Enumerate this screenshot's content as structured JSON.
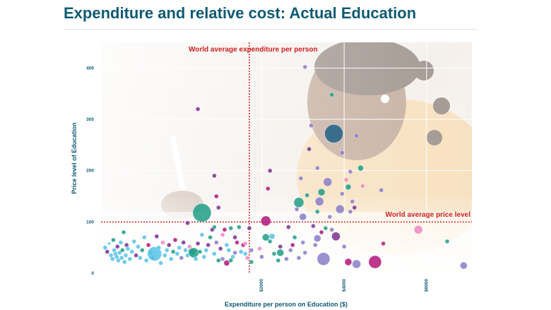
{
  "header": {
    "title": "Expenditure and relative cost: Actual Education"
  },
  "colors": {
    "title": "#0e5a73",
    "reference_line": "#d02020",
    "cyan": "#56c2e6",
    "teal": "#1f9e86",
    "purple": "#7a2f8f",
    "magenta": "#b0157a",
    "pink": "#ee88c4",
    "lavender": "#8a7cc8",
    "navy": "#1e5f86"
  },
  "background": {
    "description_icon": "child-writing-photo-icon"
  },
  "chart_data": {
    "type": "scatter",
    "title": "Expenditure and relative cost: Actual Education",
    "xlabel": "Expenditure per person on Education ($)",
    "ylabel": "Price level of Education",
    "xlim": [
      -1900,
      7100
    ],
    "ylim": [
      0,
      450
    ],
    "x_ticks": [
      2000,
      4000,
      6000
    ],
    "x_tick_labels": [
      "$2000",
      "$4000",
      "$6000"
    ],
    "y_ticks": [
      0,
      100,
      200,
      300,
      400
    ],
    "y_tick_labels": [
      "0",
      "100",
      "200",
      "300",
      "400"
    ],
    "grid": true,
    "reference_lines": [
      {
        "axis": "x",
        "value": 1700,
        "label": "World average expenditure per person"
      },
      {
        "axis": "y",
        "value": 100,
        "label": "World average price level"
      }
    ],
    "points": [
      {
        "x": -1800,
        "y": 50,
        "s": 3,
        "c": "cyan"
      },
      {
        "x": -1750,
        "y": 42,
        "s": 3,
        "c": "purple"
      },
      {
        "x": -1700,
        "y": 58,
        "s": 2,
        "c": "cyan"
      },
      {
        "x": -1660,
        "y": 35,
        "s": 3,
        "c": "cyan"
      },
      {
        "x": -1620,
        "y": 28,
        "s": 3,
        "c": "cyan"
      },
      {
        "x": -1600,
        "y": 65,
        "s": 3,
        "c": "teal"
      },
      {
        "x": -1580,
        "y": 45,
        "s": 3,
        "c": "cyan"
      },
      {
        "x": -1550,
        "y": 38,
        "s": 3,
        "c": "cyan"
      },
      {
        "x": -1520,
        "y": 32,
        "s": 3,
        "c": "cyan"
      },
      {
        "x": -1500,
        "y": 52,
        "s": 3,
        "c": "purple"
      },
      {
        "x": -1480,
        "y": 25,
        "s": 3,
        "c": "cyan"
      },
      {
        "x": -1450,
        "y": 40,
        "s": 3,
        "c": "cyan"
      },
      {
        "x": -1420,
        "y": 60,
        "s": 3,
        "c": "cyan"
      },
      {
        "x": -1400,
        "y": 30,
        "s": 3,
        "c": "cyan"
      },
      {
        "x": -1380,
        "y": 45,
        "s": 3,
        "c": "teal"
      },
      {
        "x": -1350,
        "y": 80,
        "s": 3,
        "c": "teal"
      },
      {
        "x": -1330,
        "y": 22,
        "s": 3,
        "c": "cyan"
      },
      {
        "x": -1300,
        "y": 35,
        "s": 3,
        "c": "cyan"
      },
      {
        "x": -1280,
        "y": 55,
        "s": 3,
        "c": "purple"
      },
      {
        "x": -1250,
        "y": 48,
        "s": 3,
        "c": "cyan"
      },
      {
        "x": -1200,
        "y": 28,
        "s": 3,
        "c": "cyan"
      },
      {
        "x": -1150,
        "y": 42,
        "s": 3,
        "c": "cyan"
      },
      {
        "x": -1100,
        "y": 62,
        "s": 3,
        "c": "cyan"
      },
      {
        "x": -1050,
        "y": 35,
        "s": 3,
        "c": "purple"
      },
      {
        "x": -1000,
        "y": 52,
        "s": 3,
        "c": "cyan"
      },
      {
        "x": -950,
        "y": 30,
        "s": 3,
        "c": "cyan"
      },
      {
        "x": -900,
        "y": 45,
        "s": 3,
        "c": "teal"
      },
      {
        "x": -850,
        "y": 70,
        "s": 3,
        "c": "cyan"
      },
      {
        "x": -800,
        "y": 25,
        "s": 3,
        "c": "cyan"
      },
      {
        "x": -750,
        "y": 55,
        "s": 3,
        "c": "magenta"
      },
      {
        "x": -700,
        "y": 40,
        "s": 3,
        "c": "cyan"
      },
      {
        "x": -650,
        "y": 30,
        "s": 3,
        "c": "cyan"
      },
      {
        "x": -600,
        "y": 38,
        "s": 10,
        "c": "cyan"
      },
      {
        "x": -550,
        "y": 72,
        "s": 3,
        "c": "purple"
      },
      {
        "x": -500,
        "y": 50,
        "s": 3,
        "c": "cyan"
      },
      {
        "x": -450,
        "y": 20,
        "s": 3,
        "c": "cyan"
      },
      {
        "x": -400,
        "y": 60,
        "s": 3,
        "c": "pink"
      },
      {
        "x": -350,
        "y": 35,
        "s": 3,
        "c": "cyan"
      },
      {
        "x": -300,
        "y": 45,
        "s": 3,
        "c": "cyan"
      },
      {
        "x": -250,
        "y": 55,
        "s": 3,
        "c": "purple"
      },
      {
        "x": -200,
        "y": 28,
        "s": 3,
        "c": "cyan"
      },
      {
        "x": -150,
        "y": 42,
        "s": 3,
        "c": "teal"
      },
      {
        "x": -100,
        "y": 65,
        "s": 3,
        "c": "magenta"
      },
      {
        "x": -50,
        "y": 38,
        "s": 3,
        "c": "cyan"
      },
      {
        "x": 0,
        "y": 50,
        "s": 3,
        "c": "cyan"
      },
      {
        "x": 50,
        "y": 30,
        "s": 3,
        "c": "lavender"
      },
      {
        "x": 100,
        "y": 60,
        "s": 3,
        "c": "purple"
      },
      {
        "x": 150,
        "y": 45,
        "s": 3,
        "c": "cyan"
      },
      {
        "x": 200,
        "y": 35,
        "s": 3,
        "c": "cyan"
      },
      {
        "x": 250,
        "y": 52,
        "s": 3,
        "c": "pink"
      },
      {
        "x": 300,
        "y": 42,
        "s": 5,
        "c": "teal"
      },
      {
        "x": 350,
        "y": 40,
        "s": 7,
        "c": "teal"
      },
      {
        "x": 400,
        "y": 28,
        "s": 3,
        "c": "cyan"
      },
      {
        "x": 450,
        "y": 58,
        "s": 3,
        "c": "purple"
      },
      {
        "x": 500,
        "y": 42,
        "s": 3,
        "c": "teal"
      },
      {
        "x": 550,
        "y": 75,
        "s": 3,
        "c": "cyan"
      },
      {
        "x": 600,
        "y": 32,
        "s": 3,
        "c": "cyan"
      },
      {
        "x": 650,
        "y": 45,
        "s": 3,
        "c": "cyan"
      },
      {
        "x": 700,
        "y": 55,
        "s": 3,
        "c": "purple"
      },
      {
        "x": 750,
        "y": 70,
        "s": 3,
        "c": "teal"
      },
      {
        "x": 800,
        "y": 85,
        "s": 3,
        "c": "purple"
      },
      {
        "x": 850,
        "y": 38,
        "s": 3,
        "c": "cyan"
      },
      {
        "x": 900,
        "y": 60,
        "s": 3,
        "c": "lavender"
      },
      {
        "x": 950,
        "y": 25,
        "s": 3,
        "c": "teal"
      },
      {
        "x": 1000,
        "y": 48,
        "s": 3,
        "c": "purple"
      },
      {
        "x": 1050,
        "y": 75,
        "s": 3,
        "c": "pink"
      },
      {
        "x": 1100,
        "y": 85,
        "s": 3,
        "c": "magenta"
      },
      {
        "x": 1150,
        "y": 55,
        "s": 3,
        "c": "cyan"
      },
      {
        "x": 1200,
        "y": 45,
        "s": 3,
        "c": "cyan"
      },
      {
        "x": 1250,
        "y": 88,
        "s": 3,
        "c": "teal"
      },
      {
        "x": 1300,
        "y": 32,
        "s": 3,
        "c": "cyan"
      },
      {
        "x": 1350,
        "y": 70,
        "s": 3,
        "c": "purple"
      },
      {
        "x": 1400,
        "y": 60,
        "s": 3,
        "c": "magenta"
      },
      {
        "x": 1450,
        "y": 90,
        "s": 3,
        "c": "teal"
      },
      {
        "x": 1500,
        "y": 42,
        "s": 3,
        "c": "cyan"
      },
      {
        "x": 1550,
        "y": 55,
        "s": 3,
        "c": "magenta"
      },
      {
        "x": 1600,
        "y": 38,
        "s": 3,
        "c": "cyan"
      },
      {
        "x": 1650,
        "y": 30,
        "s": 3,
        "c": "pink"
      },
      {
        "x": 1700,
        "y": 88,
        "s": 3,
        "c": "purple"
      },
      {
        "x": 1750,
        "y": 22,
        "s": 3,
        "c": "teal"
      },
      {
        "x": 1150,
        "y": 20,
        "s": 4,
        "c": "magenta"
      },
      {
        "x": 1250,
        "y": 25,
        "s": 3,
        "c": "teal"
      },
      {
        "x": 1750,
        "y": 45,
        "s": 3,
        "c": "lavender"
      },
      {
        "x": 1050,
        "y": 28,
        "s": 3,
        "c": "lavender"
      },
      {
        "x": 1350,
        "y": 40,
        "s": 3,
        "c": "lavender"
      },
      {
        "x": 1600,
        "y": 58,
        "s": 3,
        "c": "pink"
      },
      {
        "x": 850,
        "y": 90,
        "s": 3,
        "c": "teal"
      },
      {
        "x": 550,
        "y": 118,
        "s": 13,
        "c": "teal"
      },
      {
        "x": 450,
        "y": 320,
        "s": 3,
        "c": "purple"
      },
      {
        "x": 850,
        "y": 190,
        "s": 3,
        "c": "purple"
      },
      {
        "x": 900,
        "y": 150,
        "s": 3,
        "c": "magenta"
      },
      {
        "x": 950,
        "y": 128,
        "s": 3,
        "c": "purple"
      },
      {
        "x": 200,
        "y": 98,
        "s": 3,
        "c": "purple"
      },
      {
        "x": 2100,
        "y": 102,
        "s": 7,
        "c": "magenta"
      },
      {
        "x": 2150,
        "y": 165,
        "s": 3,
        "c": "magenta"
      },
      {
        "x": 2200,
        "y": 200,
        "s": 3,
        "c": "purple"
      },
      {
        "x": 2100,
        "y": 70,
        "s": 5,
        "c": "teal"
      },
      {
        "x": 2200,
        "y": 62,
        "s": 3,
        "c": "teal"
      },
      {
        "x": 2250,
        "y": 72,
        "s": 4,
        "c": "cyan"
      },
      {
        "x": 1950,
        "y": 48,
        "s": 3,
        "c": "pink"
      },
      {
        "x": 2000,
        "y": 32,
        "s": 3,
        "c": "lavender"
      },
      {
        "x": 2300,
        "y": 38,
        "s": 3,
        "c": "teal"
      },
      {
        "x": 2400,
        "y": 25,
        "s": 3,
        "c": "teal"
      },
      {
        "x": 2450,
        "y": 40,
        "s": 5,
        "c": "teal"
      },
      {
        "x": 2450,
        "y": 52,
        "s": 3,
        "c": "purple"
      },
      {
        "x": 2600,
        "y": 28,
        "s": 3,
        "c": "lavender"
      },
      {
        "x": 2650,
        "y": 90,
        "s": 3,
        "c": "purple"
      },
      {
        "x": 2700,
        "y": 45,
        "s": 3,
        "c": "lavender"
      },
      {
        "x": 2750,
        "y": 55,
        "s": 3,
        "c": "magenta"
      },
      {
        "x": 2800,
        "y": 70,
        "s": 3,
        "c": "teal"
      },
      {
        "x": 2850,
        "y": 125,
        "s": 3,
        "c": "lavender"
      },
      {
        "x": 2900,
        "y": 138,
        "s": 7,
        "c": "teal"
      },
      {
        "x": 2950,
        "y": 185,
        "s": 3,
        "c": "lavender"
      },
      {
        "x": 3000,
        "y": 110,
        "s": 5,
        "c": "lavender"
      },
      {
        "x": 3000,
        "y": 60,
        "s": 3,
        "c": "lavender"
      },
      {
        "x": 2900,
        "y": 30,
        "s": 3,
        "c": "lavender"
      },
      {
        "x": 3050,
        "y": 40,
        "s": 3,
        "c": "lavender"
      },
      {
        "x": 3100,
        "y": 152,
        "s": 3,
        "c": "teal"
      },
      {
        "x": 3050,
        "y": 402,
        "s": 3,
        "c": "lavender"
      },
      {
        "x": 3150,
        "y": 242,
        "s": 3,
        "c": "purple"
      },
      {
        "x": 3200,
        "y": 288,
        "s": 3,
        "c": "lavender"
      },
      {
        "x": 3250,
        "y": 92,
        "s": 3,
        "c": "purple"
      },
      {
        "x": 3300,
        "y": 55,
        "s": 3,
        "c": "lavender"
      },
      {
        "x": 3350,
        "y": 205,
        "s": 3,
        "c": "lavender"
      },
      {
        "x": 3350,
        "y": 120,
        "s": 3,
        "c": "teal"
      },
      {
        "x": 3350,
        "y": 68,
        "s": 5,
        "c": "lavender"
      },
      {
        "x": 3400,
        "y": 140,
        "s": 6,
        "c": "lavender"
      },
      {
        "x": 3450,
        "y": 158,
        "s": 5,
        "c": "teal"
      },
      {
        "x": 3450,
        "y": 80,
        "s": 3,
        "c": "magenta"
      },
      {
        "x": 3500,
        "y": 28,
        "s": 9,
        "c": "lavender"
      },
      {
        "x": 3550,
        "y": 88,
        "s": 3,
        "c": "teal"
      },
      {
        "x": 3600,
        "y": 178,
        "s": 6,
        "c": "lavender"
      },
      {
        "x": 3650,
        "y": 110,
        "s": 3,
        "c": "lavender"
      },
      {
        "x": 3700,
        "y": 348,
        "s": 3,
        "c": "teal"
      },
      {
        "x": 3700,
        "y": 85,
        "s": 3,
        "c": "lavender"
      },
      {
        "x": 3750,
        "y": 272,
        "s": 13,
        "c": "navy"
      },
      {
        "x": 3800,
        "y": 72,
        "s": 6,
        "c": "purple"
      },
      {
        "x": 3900,
        "y": 125,
        "s": 6,
        "c": "lavender"
      },
      {
        "x": 3950,
        "y": 155,
        "s": 3,
        "c": "lavender"
      },
      {
        "x": 3950,
        "y": 235,
        "s": 3,
        "c": "lavender"
      },
      {
        "x": 4000,
        "y": 52,
        "s": 3,
        "c": "lavender"
      },
      {
        "x": 4050,
        "y": 182,
        "s": 3,
        "c": "pink"
      },
      {
        "x": 4100,
        "y": 168,
        "s": 4,
        "c": "teal"
      },
      {
        "x": 4150,
        "y": 198,
        "s": 3,
        "c": "lavender"
      },
      {
        "x": 4100,
        "y": 22,
        "s": 5,
        "c": "magenta"
      },
      {
        "x": 4150,
        "y": 120,
        "s": 3,
        "c": "lavender"
      },
      {
        "x": 4200,
        "y": 140,
        "s": 3,
        "c": "lavender"
      },
      {
        "x": 4250,
        "y": 128,
        "s": 3,
        "c": "purple"
      },
      {
        "x": 4300,
        "y": 268,
        "s": 3,
        "c": "lavender"
      },
      {
        "x": 4300,
        "y": 18,
        "s": 6,
        "c": "lavender"
      },
      {
        "x": 4400,
        "y": 205,
        "s": 4,
        "c": "teal"
      },
      {
        "x": 4450,
        "y": 170,
        "s": 3,
        "c": "pink"
      },
      {
        "x": 4750,
        "y": 22,
        "s": 9,
        "c": "magenta"
      },
      {
        "x": 4900,
        "y": 162,
        "s": 3,
        "c": "lavender"
      },
      {
        "x": 4950,
        "y": 58,
        "s": 3,
        "c": "magenta"
      },
      {
        "x": 5800,
        "y": 85,
        "s": 6,
        "c": "pink"
      },
      {
        "x": 6500,
        "y": 62,
        "s": 3,
        "c": "teal"
      },
      {
        "x": 6900,
        "y": 15,
        "s": 5,
        "c": "lavender"
      }
    ]
  }
}
